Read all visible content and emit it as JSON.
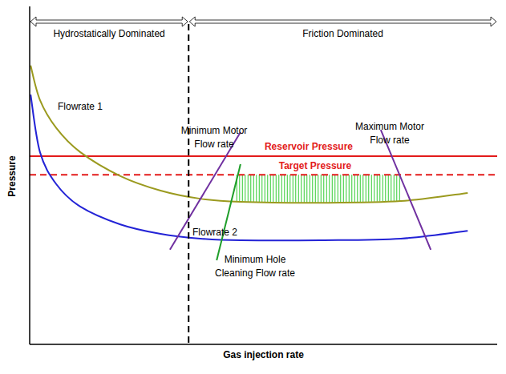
{
  "chart_data": {
    "type": "line",
    "x_label": "Gas injection rate",
    "y_label": "Pressure",
    "xlim": [
      0,
      100
    ],
    "ylim": [
      0,
      100
    ],
    "xticks": [],
    "yticks": [],
    "tick_labels": false,
    "grid": false,
    "series": [
      {
        "name": "Flowrate 1",
        "color": "#9b9a1f",
        "line_style": "solid",
        "x": [
          0.2,
          2.2,
          5.7,
          10.8,
          19.4,
          28.0,
          36.5,
          45.1,
          62.3,
          79.4,
          93.7
        ],
        "values": [
          82.5,
          72.3,
          64.0,
          56.9,
          49.8,
          45.5,
          43.1,
          42.2,
          41.9,
          42.4,
          44.8
        ]
      },
      {
        "name": "Flowrate 2",
        "color": "#2323d6",
        "line_style": "solid",
        "x": [
          0.2,
          2.2,
          5.7,
          10.8,
          19.4,
          28.0,
          36.5,
          45.1,
          62.3,
          79.4,
          93.7
        ],
        "values": [
          73.9,
          56.9,
          47.4,
          40.8,
          35.5,
          32.7,
          31.3,
          30.8,
          30.8,
          31.3,
          33.6
        ]
      }
    ],
    "reference_lines": [
      {
        "name": "Reservoir Pressure",
        "color": "#e31b1b",
        "line_style": "solid",
        "y": 55.7
      },
      {
        "name": "Target Pressure",
        "color": "#e31b1b",
        "line_style": "dashed",
        "y": 50.2
      }
    ],
    "regions": [
      {
        "name": "Hydrostatically Dominated",
        "x": [
          0,
          34.0
        ]
      },
      {
        "name": "Friction Dominated",
        "x": [
          34.0,
          100
        ]
      }
    ],
    "limit_lines": [
      {
        "label": [
          "Minimum Motor",
          "Flow rate"
        ],
        "color": "#7030a0",
        "x": [
          30.0,
          45.1
        ],
        "y": [
          28.0,
          62.8
        ]
      },
      {
        "label": [
          "Minimum Hole",
          "Cleaning Flow rate"
        ],
        "color": "#1f9e2a",
        "x": [
          40.0,
          45.1
        ],
        "y": [
          24.9,
          53.3
        ]
      },
      {
        "label": [
          "Maximum Motor",
          "Flow rate"
        ],
        "color": "#7030a0",
        "x": [
          75.1,
          85.8
        ],
        "y": [
          63.5,
          28.0
        ]
      }
    ],
    "operating_window": {
      "color": "#33cc33",
      "x": [
        44.3,
        79.4
      ]
    }
  }
}
